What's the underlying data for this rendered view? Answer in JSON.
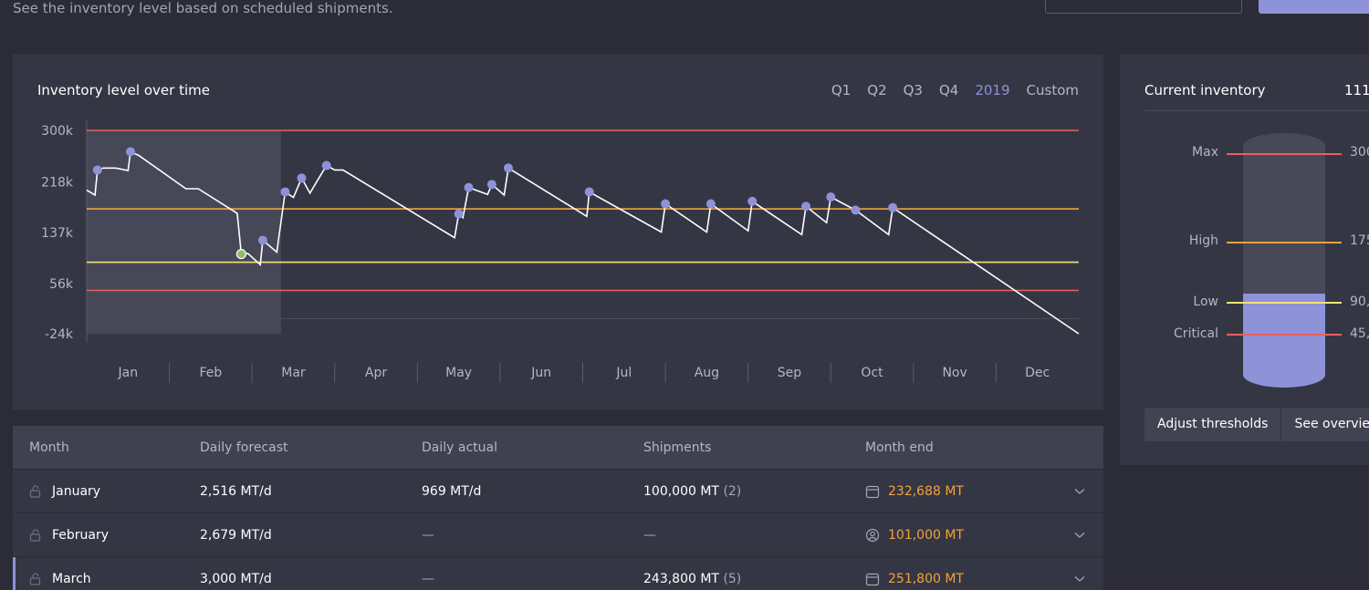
{
  "header": {
    "subtitle": "See the inventory level based on scheduled shipments."
  },
  "chart_card": {
    "title": "Inventory level over time",
    "periods": [
      "Q1",
      "Q2",
      "Q3",
      "Q4",
      "2019",
      "Custom"
    ],
    "active_period": "2019"
  },
  "chart_data": {
    "type": "line",
    "title": "Inventory level over time",
    "y_ticks": [
      "300k",
      "218k",
      "137k",
      "56k",
      "-24k"
    ],
    "y_tick_values": [
      300000,
      218000,
      137000,
      56000,
      -24000
    ],
    "ylim": [
      -24000,
      300000
    ],
    "xlim": [
      0,
      12
    ],
    "x_ticks": [
      "Jan",
      "Feb",
      "Mar",
      "Apr",
      "May",
      "Jun",
      "Jul",
      "Aug",
      "Sep",
      "Oct",
      "Nov",
      "Dec"
    ],
    "thresholds": [
      {
        "name": "Max",
        "value": 300000,
        "color": "#e8615d"
      },
      {
        "name": "High",
        "value": 175000,
        "color": "#f2a33a"
      },
      {
        "name": "Low",
        "value": 90000,
        "color": "#f3e27a"
      },
      {
        "name": "Critical",
        "value": 45000,
        "color": "#e8615d"
      }
    ],
    "actual_shaded_until": 2.35,
    "inventory_line": [
      [
        0,
        205000
      ],
      [
        0.1,
        197000
      ],
      [
        0.13,
        237000
      ],
      [
        0.2,
        240000
      ],
      [
        0.35,
        240000
      ],
      [
        0.5,
        236000
      ],
      [
        0.53,
        266000
      ],
      [
        0.63,
        260000
      ],
      [
        1.2,
        207000
      ],
      [
        1.35,
        207000
      ],
      [
        1.82,
        168000
      ],
      [
        1.87,
        103000
      ],
      [
        1.95,
        104000
      ],
      [
        2.1,
        86000
      ],
      [
        2.13,
        125000
      ],
      [
        2.3,
        106000
      ],
      [
        2.4,
        202000
      ],
      [
        2.5,
        193000
      ],
      [
        2.6,
        224000
      ],
      [
        2.7,
        200000
      ],
      [
        2.9,
        244000
      ],
      [
        3.0,
        237000
      ],
      [
        3.1,
        237000
      ],
      [
        4.45,
        129000
      ],
      [
        4.5,
        167000
      ],
      [
        4.55,
        161000
      ],
      [
        4.62,
        209000
      ],
      [
        4.85,
        198000
      ],
      [
        4.9,
        214000
      ],
      [
        5.05,
        197000
      ],
      [
        5.1,
        240000
      ],
      [
        6.05,
        163000
      ],
      [
        6.08,
        202000
      ],
      [
        6.95,
        138000
      ],
      [
        7.0,
        183000
      ],
      [
        7.5,
        138000
      ],
      [
        7.55,
        183000
      ],
      [
        8.0,
        140000
      ],
      [
        8.05,
        187000
      ],
      [
        8.65,
        134000
      ],
      [
        8.7,
        179000
      ],
      [
        8.95,
        153000
      ],
      [
        9.0,
        194000
      ],
      [
        9.3,
        173000
      ],
      [
        9.7,
        134000
      ],
      [
        9.75,
        177000
      ],
      [
        12,
        -24000
      ]
    ],
    "shipment_markers": [
      [
        0.13,
        237000
      ],
      [
        0.53,
        266000
      ],
      [
        1.87,
        103000
      ],
      [
        2.13,
        125000
      ],
      [
        2.4,
        202000
      ],
      [
        2.6,
        224000
      ],
      [
        2.9,
        244000
      ],
      [
        4.5,
        167000
      ],
      [
        4.62,
        209000
      ],
      [
        4.9,
        214000
      ],
      [
        5.1,
        240000
      ],
      [
        6.08,
        202000
      ],
      [
        7.0,
        183000
      ],
      [
        7.55,
        183000
      ],
      [
        8.05,
        187000
      ],
      [
        8.7,
        179000
      ],
      [
        9.0,
        194000
      ],
      [
        9.3,
        173000
      ],
      [
        9.75,
        177000
      ]
    ],
    "highlighted_marker_index": 2,
    "colors": {
      "line": "#ffffff",
      "marker": "#8e92d8",
      "highlight_marker": "#8fbf6a",
      "shaded_area": "#464857"
    }
  },
  "inventory_panel": {
    "title": "Current inventory",
    "value": "111",
    "levels": [
      {
        "label": "Max",
        "value": "300"
      },
      {
        "label": "High",
        "value": "175"
      },
      {
        "label": "Low",
        "value": "90,"
      },
      {
        "label": "Critical",
        "value": "45,"
      }
    ],
    "fill_fraction": 0.37,
    "buttons": [
      "Adjust thresholds",
      "See overview"
    ]
  },
  "table": {
    "columns": [
      "Month",
      "Daily forecast",
      "Daily actual",
      "Shipments",
      "Month end"
    ],
    "rows": [
      {
        "month": "January",
        "forecast": "2,516 MT/d",
        "actual": "969 MT/d",
        "shipments": "100,000 MT",
        "shipment_count": "(2)",
        "month_end": "232,688 MT",
        "end_icon": "calendar-icon"
      },
      {
        "month": "February",
        "forecast": "2,679 MT/d",
        "actual": "—",
        "shipments": "—",
        "shipment_count": "",
        "month_end": "101,000 MT",
        "end_icon": "user-icon"
      },
      {
        "month": "March",
        "forecast": "3,000 MT/d",
        "actual": "—",
        "shipments": "243,800 MT",
        "shipment_count": "(5)",
        "month_end": "251,800 MT",
        "end_icon": "calendar-icon"
      }
    ]
  }
}
